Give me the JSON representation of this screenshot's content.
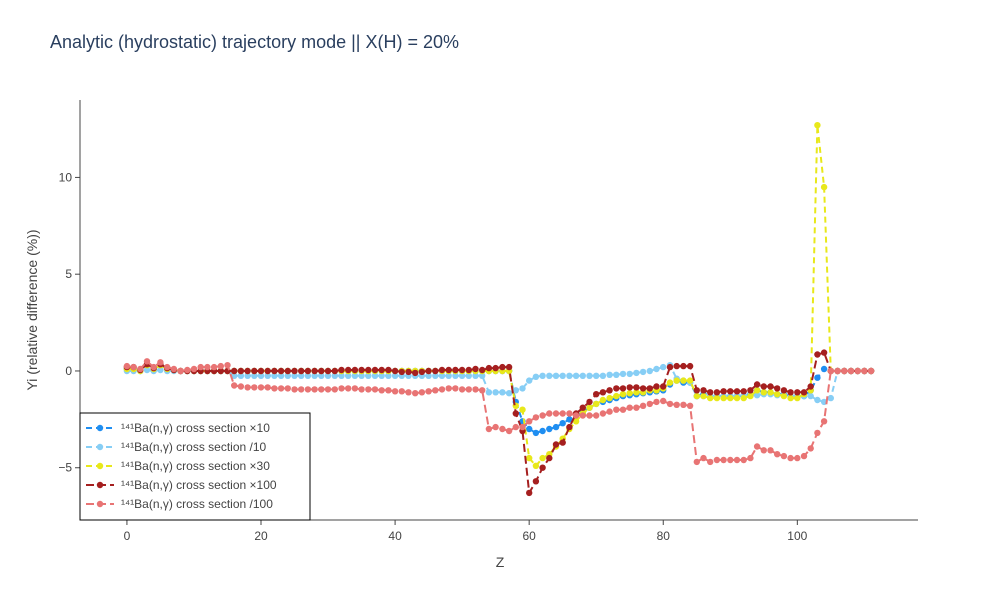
{
  "chart_data": {
    "type": "line",
    "title": "Analytic (hydrostatic) trajectory mode || X(H) = 20%",
    "xlabel": "Z",
    "ylabel": "Yi (relative difference (%))",
    "xlim": [
      -7,
      118
    ],
    "ylim": [
      -7.7,
      14
    ],
    "xticks": [
      0,
      20,
      40,
      60,
      80,
      100
    ],
    "yticks": [
      -5,
      0,
      5,
      10
    ],
    "grid": false,
    "legend_position": "bottom-left",
    "series": [
      {
        "name": "¹⁴¹Ba(n,γ) cross section ×10",
        "color": "#1f8ef1",
        "dash": "6,4",
        "x": [
          0,
          1,
          2,
          3,
          4,
          5,
          6,
          7,
          8,
          9,
          10,
          11,
          12,
          13,
          14,
          15,
          16,
          17,
          18,
          19,
          20,
          21,
          22,
          23,
          24,
          25,
          26,
          27,
          28,
          29,
          30,
          31,
          32,
          33,
          34,
          35,
          36,
          37,
          38,
          39,
          40,
          41,
          42,
          43,
          44,
          45,
          46,
          47,
          48,
          49,
          50,
          51,
          52,
          53,
          54,
          55,
          56,
          57,
          58,
          59,
          60,
          61,
          62,
          63,
          64,
          65,
          66,
          67,
          68,
          69,
          70,
          71,
          72,
          73,
          74,
          75,
          76,
          77,
          78,
          79,
          80,
          81,
          82,
          83,
          84,
          85,
          86,
          87,
          88,
          89,
          90,
          91,
          92,
          93,
          94,
          95,
          96,
          97,
          98,
          99,
          100,
          101,
          102,
          103,
          104,
          105,
          106,
          107,
          108,
          109,
          110,
          111
        ],
        "y": [
          0.1,
          0.1,
          0,
          0.3,
          0.1,
          0.3,
          0.1,
          0.05,
          0,
          0,
          0,
          0,
          0,
          0,
          0,
          0,
          0,
          0,
          0,
          0,
          0,
          0,
          0,
          0,
          0,
          0,
          0,
          0,
          0,
          0,
          0,
          0,
          0,
          0,
          0,
          0,
          0,
          0,
          0,
          0,
          0,
          0,
          0,
          0,
          0,
          0,
          0,
          0,
          0,
          0,
          0,
          0,
          0,
          0,
          0,
          0,
          0,
          0,
          -1.6,
          -2.6,
          -3.0,
          -3.2,
          -3.1,
          -3.0,
          -2.9,
          -2.7,
          -2.5,
          -2.3,
          -2.1,
          -1.9,
          -1.7,
          -1.6,
          -1.5,
          -1.4,
          -1.3,
          -1.25,
          -1.2,
          -1.15,
          -1.1,
          -1.05,
          -1.0,
          -0.7,
          -0.5,
          -0.6,
          -0.6,
          -1.3,
          -1.2,
          -1.3,
          -1.3,
          -1.3,
          -1.3,
          -1.3,
          -1.3,
          -1.2,
          -1.0,
          -1.1,
          -1.1,
          -1.2,
          -1.2,
          -1.3,
          -1.3,
          -1.3,
          -1.0,
          -0.35,
          0.1,
          0,
          0,
          0,
          0,
          0,
          0,
          0
        ]
      },
      {
        "name": "¹⁴¹Ba(n,γ) cross section /10",
        "color": "#87cef5",
        "dash": "6,4",
        "x": [
          0,
          1,
          2,
          3,
          4,
          5,
          6,
          7,
          8,
          9,
          10,
          11,
          12,
          13,
          14,
          15,
          16,
          17,
          18,
          19,
          20,
          21,
          22,
          23,
          24,
          25,
          26,
          27,
          28,
          29,
          30,
          31,
          32,
          33,
          34,
          35,
          36,
          37,
          38,
          39,
          40,
          41,
          42,
          43,
          44,
          45,
          46,
          47,
          48,
          49,
          50,
          51,
          52,
          53,
          54,
          55,
          56,
          57,
          58,
          59,
          60,
          61,
          62,
          63,
          64,
          65,
          66,
          67,
          68,
          69,
          70,
          71,
          72,
          73,
          74,
          75,
          76,
          77,
          78,
          79,
          80,
          81,
          82,
          83,
          84,
          85,
          86,
          87,
          88,
          89,
          90,
          91,
          92,
          93,
          94,
          95,
          96,
          97,
          98,
          99,
          100,
          101,
          102,
          103,
          104,
          105,
          106,
          107,
          108,
          109,
          110,
          111
        ],
        "y": [
          0,
          0,
          0,
          0.05,
          0,
          0.05,
          0,
          0,
          0,
          0,
          0,
          0,
          0,
          0,
          0,
          0,
          -0.25,
          -0.25,
          -0.25,
          -0.25,
          -0.25,
          -0.25,
          -0.25,
          -0.25,
          -0.25,
          -0.25,
          -0.25,
          -0.25,
          -0.25,
          -0.25,
          -0.25,
          -0.25,
          -0.25,
          -0.25,
          -0.25,
          -0.25,
          -0.25,
          -0.25,
          -0.25,
          -0.25,
          -0.25,
          -0.25,
          -0.25,
          -0.25,
          -0.25,
          -0.25,
          -0.25,
          -0.25,
          -0.25,
          -0.25,
          -0.25,
          -0.25,
          -0.25,
          -0.25,
          -1.1,
          -1.1,
          -1.1,
          -1.15,
          -1.0,
          -0.9,
          -0.5,
          -0.3,
          -0.25,
          -0.25,
          -0.25,
          -0.25,
          -0.25,
          -0.25,
          -0.25,
          -0.25,
          -0.25,
          -0.25,
          -0.2,
          -0.2,
          -0.15,
          -0.15,
          -0.1,
          -0.05,
          0,
          0.1,
          0.2,
          0.3,
          -0.4,
          -0.5,
          -0.6,
          -1.3,
          -1.3,
          -1.3,
          -1.3,
          -1.3,
          -1.3,
          -1.3,
          -1.25,
          -1.25,
          -1.25,
          -1.2,
          -1.2,
          -1.25,
          -1.25,
          -1.3,
          -1.3,
          -1.3,
          -1.3,
          -1.5,
          -1.6,
          -1.4,
          0,
          0,
          0,
          0,
          0,
          0
        ]
      },
      {
        "name": "¹⁴¹Ba(n,γ) cross section ×30",
        "color": "#e8e81a",
        "dash": "6,4",
        "x": [
          0,
          1,
          2,
          3,
          4,
          5,
          6,
          7,
          8,
          9,
          10,
          11,
          12,
          13,
          14,
          15,
          16,
          17,
          18,
          19,
          20,
          21,
          22,
          23,
          24,
          25,
          26,
          27,
          28,
          29,
          30,
          31,
          32,
          33,
          34,
          35,
          36,
          37,
          38,
          39,
          40,
          41,
          42,
          43,
          44,
          45,
          46,
          47,
          48,
          49,
          50,
          51,
          52,
          53,
          54,
          55,
          56,
          57,
          58,
          59,
          60,
          61,
          62,
          63,
          64,
          65,
          66,
          67,
          68,
          69,
          70,
          71,
          72,
          73,
          74,
          75,
          76,
          77,
          78,
          79,
          80,
          81,
          82,
          83,
          84,
          85,
          86,
          87,
          88,
          89,
          90,
          91,
          92,
          93,
          94,
          95,
          96,
          97,
          98,
          99,
          100,
          101,
          102,
          103,
          104,
          105,
          106,
          107,
          108,
          109,
          110,
          111
        ],
        "y": [
          0.1,
          0.1,
          0,
          0.3,
          0.1,
          0.3,
          0.1,
          0.05,
          0,
          0,
          0,
          0,
          0,
          0,
          0,
          0,
          0,
          0,
          0,
          0,
          0,
          0,
          0,
          0,
          0,
          0,
          0,
          0,
          0,
          0,
          0,
          0,
          0,
          0,
          0,
          0,
          0,
          0,
          0,
          0,
          0,
          0,
          0,
          0,
          0,
          0,
          0,
          0,
          0,
          0,
          0,
          0,
          0,
          0,
          0,
          0,
          0,
          0,
          -1.8,
          -2.0,
          -4.5,
          -4.9,
          -4.5,
          -4.3,
          -3.9,
          -3.5,
          -3.0,
          -2.6,
          -2.2,
          -1.9,
          -1.7,
          -1.5,
          -1.4,
          -1.3,
          -1.2,
          -1.15,
          -1.1,
          -1.1,
          -1.0,
          -1.0,
          -0.9,
          -0.6,
          -0.5,
          -0.5,
          -0.5,
          -1.3,
          -1.3,
          -1.4,
          -1.4,
          -1.4,
          -1.4,
          -1.4,
          -1.4,
          -1.3,
          -1.0,
          -1.1,
          -1.1,
          -1.2,
          -1.3,
          -1.4,
          -1.4,
          -1.2,
          -1.0,
          12.7,
          9.5,
          0,
          0,
          0,
          0,
          0,
          0,
          0
        ]
      },
      {
        "name": "¹⁴¹Ba(n,γ) cross section ×100",
        "color": "#a51f1f",
        "dash": "8,4",
        "x": [
          0,
          1,
          2,
          3,
          4,
          5,
          6,
          7,
          8,
          9,
          10,
          11,
          12,
          13,
          14,
          15,
          16,
          17,
          18,
          19,
          20,
          21,
          22,
          23,
          24,
          25,
          26,
          27,
          28,
          29,
          30,
          31,
          32,
          33,
          34,
          35,
          36,
          37,
          38,
          39,
          40,
          41,
          42,
          43,
          44,
          45,
          46,
          47,
          48,
          49,
          50,
          51,
          52,
          53,
          54,
          55,
          56,
          57,
          58,
          59,
          60,
          61,
          62,
          63,
          64,
          65,
          66,
          67,
          68,
          69,
          70,
          71,
          72,
          73,
          74,
          75,
          76,
          77,
          78,
          79,
          80,
          81,
          82,
          83,
          84,
          85,
          86,
          87,
          88,
          89,
          90,
          91,
          92,
          93,
          94,
          95,
          96,
          97,
          98,
          99,
          100,
          101,
          102,
          103,
          104,
          105,
          106,
          107,
          108,
          109,
          110,
          111
        ],
        "y": [
          0.2,
          0.2,
          0.05,
          0.35,
          0.15,
          0.35,
          0.15,
          0.05,
          0,
          0,
          0,
          0,
          0,
          0,
          0,
          0,
          0,
          0,
          0,
          0,
          0,
          0,
          0,
          0,
          0,
          0,
          0,
          0,
          0,
          0,
          0,
          0,
          0.05,
          0.05,
          0.05,
          0.05,
          0.05,
          0.05,
          0.05,
          0.05,
          0,
          -0.05,
          -0.05,
          -0.1,
          -0.05,
          0,
          0,
          0.05,
          0.05,
          0.05,
          0.05,
          0.05,
          0.1,
          0.05,
          0.15,
          0.15,
          0.2,
          0.2,
          -2.2,
          -3.1,
          -6.3,
          -5.7,
          -5.0,
          -4.5,
          -3.8,
          -3.7,
          -2.9,
          -2.2,
          -1.9,
          -1.6,
          -1.2,
          -1.1,
          -1.0,
          -0.9,
          -0.9,
          -0.85,
          -0.85,
          -0.9,
          -0.9,
          -0.8,
          -0.8,
          0.2,
          0.25,
          0.25,
          0.25,
          -1.0,
          -1.0,
          -1.1,
          -1.1,
          -1.05,
          -1.05,
          -1.05,
          -1.05,
          -1.0,
          -0.7,
          -0.8,
          -0.8,
          -0.9,
          -1.0,
          -1.1,
          -1.1,
          -1.1,
          -0.8,
          0.85,
          0.95,
          0,
          0,
          0,
          0,
          0,
          0,
          0
        ]
      },
      {
        "name": "¹⁴¹Ba(n,γ) cross section /100",
        "color": "#e87474",
        "dash": "8,4",
        "x": [
          0,
          1,
          2,
          3,
          4,
          5,
          6,
          7,
          8,
          9,
          10,
          11,
          12,
          13,
          14,
          15,
          16,
          17,
          18,
          19,
          20,
          21,
          22,
          23,
          24,
          25,
          26,
          27,
          28,
          29,
          30,
          31,
          32,
          33,
          34,
          35,
          36,
          37,
          38,
          39,
          40,
          41,
          42,
          43,
          44,
          45,
          46,
          47,
          48,
          49,
          50,
          51,
          52,
          53,
          54,
          55,
          56,
          57,
          58,
          59,
          60,
          61,
          62,
          63,
          64,
          65,
          66,
          67,
          68,
          69,
          70,
          71,
          72,
          73,
          74,
          75,
          76,
          77,
          78,
          79,
          80,
          81,
          82,
          83,
          84,
          85,
          86,
          87,
          88,
          89,
          90,
          91,
          92,
          93,
          94,
          95,
          96,
          97,
          98,
          99,
          100,
          101,
          102,
          103,
          104,
          105,
          106,
          107,
          108,
          109,
          110,
          111
        ],
        "y": [
          0.25,
          0.2,
          0.1,
          0.5,
          0.2,
          0.45,
          0.2,
          0.1,
          0,
          0.05,
          0.1,
          0.2,
          0.2,
          0.2,
          0.25,
          0.3,
          -0.75,
          -0.8,
          -0.85,
          -0.85,
          -0.85,
          -0.85,
          -0.9,
          -0.9,
          -0.9,
          -0.95,
          -0.95,
          -0.95,
          -0.95,
          -0.95,
          -0.95,
          -0.95,
          -0.9,
          -0.9,
          -0.9,
          -0.95,
          -0.95,
          -0.95,
          -1.0,
          -1.0,
          -1.05,
          -1.05,
          -1.1,
          -1.15,
          -1.1,
          -1.05,
          -1.0,
          -0.95,
          -0.9,
          -0.9,
          -0.95,
          -0.95,
          -0.95,
          -1.0,
          -3.0,
          -2.9,
          -3.0,
          -3.1,
          -2.9,
          -2.9,
          -2.6,
          -2.4,
          -2.3,
          -2.2,
          -2.2,
          -2.2,
          -2.2,
          -2.3,
          -2.3,
          -2.3,
          -2.3,
          -2.2,
          -2.1,
          -2.0,
          -2.0,
          -1.9,
          -1.9,
          -1.8,
          -1.7,
          -1.6,
          -1.55,
          -1.7,
          -1.75,
          -1.75,
          -1.8,
          -4.7,
          -4.5,
          -4.7,
          -4.6,
          -4.6,
          -4.6,
          -4.6,
          -4.6,
          -4.5,
          -3.9,
          -4.1,
          -4.1,
          -4.3,
          -4.4,
          -4.5,
          -4.5,
          -4.4,
          -4.0,
          -3.2,
          -2.6,
          0,
          0,
          0,
          0,
          0,
          0,
          0
        ]
      }
    ]
  }
}
